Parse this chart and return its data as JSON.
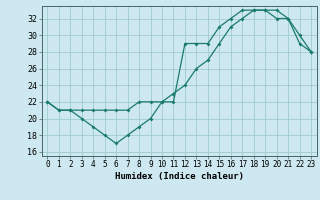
{
  "title": "",
  "xlabel": "Humidex (Indice chaleur)",
  "bg_color": "#cde8f0",
  "grid_color": "#a0cccc",
  "line_color": "#1a7a6e",
  "xlim": [
    -0.5,
    23.5
  ],
  "ylim": [
    15.5,
    33.5
  ],
  "xticks": [
    0,
    1,
    2,
    3,
    4,
    5,
    6,
    7,
    8,
    9,
    10,
    11,
    12,
    13,
    14,
    15,
    16,
    17,
    18,
    19,
    20,
    21,
    22,
    23
  ],
  "yticks": [
    16,
    18,
    20,
    22,
    24,
    26,
    28,
    30,
    32
  ],
  "line1_x": [
    0,
    1,
    2,
    3,
    4,
    5,
    6,
    7,
    8,
    9,
    10,
    11,
    12,
    13,
    14,
    15,
    16,
    17,
    18,
    19,
    20,
    21,
    22,
    23
  ],
  "line1_y": [
    22,
    21,
    21,
    20,
    19,
    18,
    17,
    18,
    19,
    20,
    22,
    22,
    29,
    29,
    29,
    31,
    32,
    33,
    33,
    33,
    32,
    32,
    29,
    28
  ],
  "line2_x": [
    0,
    1,
    2,
    3,
    4,
    5,
    6,
    7,
    8,
    9,
    10,
    11,
    12,
    13,
    14,
    15,
    16,
    17,
    18,
    19,
    20,
    21,
    22,
    23
  ],
  "line2_y": [
    22,
    21,
    21,
    21,
    21,
    21,
    21,
    21,
    22,
    22,
    22,
    23,
    24,
    26,
    27,
    29,
    31,
    32,
    33,
    33,
    33,
    32,
    30,
    28
  ],
  "tick_fontsize": 5.5,
  "xlabel_fontsize": 6.5
}
